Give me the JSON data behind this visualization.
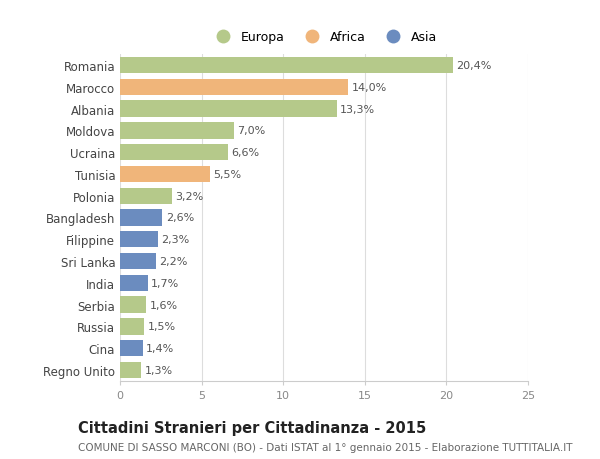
{
  "categories": [
    "Romania",
    "Marocco",
    "Albania",
    "Moldova",
    "Ucraina",
    "Tunisia",
    "Polonia",
    "Bangladesh",
    "Filippine",
    "Sri Lanka",
    "India",
    "Serbia",
    "Russia",
    "Cina",
    "Regno Unito"
  ],
  "values": [
    20.4,
    14.0,
    13.3,
    7.0,
    6.6,
    5.5,
    3.2,
    2.6,
    2.3,
    2.2,
    1.7,
    1.6,
    1.5,
    1.4,
    1.3
  ],
  "continents": [
    "Europa",
    "Africa",
    "Europa",
    "Europa",
    "Europa",
    "Africa",
    "Europa",
    "Asia",
    "Asia",
    "Asia",
    "Asia",
    "Europa",
    "Europa",
    "Asia",
    "Europa"
  ],
  "labels": [
    "20,4%",
    "14,0%",
    "13,3%",
    "7,0%",
    "6,6%",
    "5,5%",
    "3,2%",
    "2,6%",
    "2,3%",
    "2,2%",
    "1,7%",
    "1,6%",
    "1,5%",
    "1,4%",
    "1,3%"
  ],
  "color_europa": "#b5c98a",
  "color_africa": "#f0b57a",
  "color_asia": "#6b8cbf",
  "background_color": "#ffffff",
  "grid_color": "#dddddd",
  "title": "Cittadini Stranieri per Cittadinanza - 2015",
  "subtitle": "COMUNE DI SASSO MARCONI (BO) - Dati ISTAT al 1° gennaio 2015 - Elaborazione TUTTITALIA.IT",
  "xlim": [
    0,
    25
  ],
  "bar_height": 0.75,
  "label_fontsize": 8.0,
  "ytick_fontsize": 8.5,
  "title_fontsize": 10.5,
  "subtitle_fontsize": 7.5,
  "legend_fontsize": 9.0
}
